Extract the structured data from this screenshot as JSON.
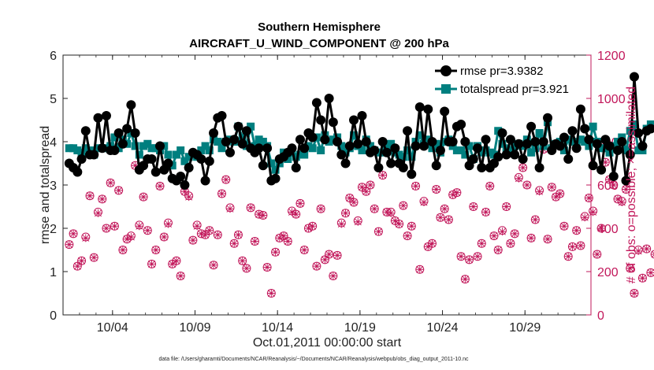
{
  "chart_data": {
    "type": "line",
    "title_line1": "Southern Hemisphere",
    "title_line2": "AIRCRAFT_U_WIND_COMPONENT @ 200 hPa",
    "xlabel": "Oct.01,2011 00:00:00 start",
    "ylabel_left": "rmse and totalspread",
    "ylabel_right": "# of obs: o=possible; ×=assimilated",
    "footnote": "data file: /Users/gharamti/Documents/NCAR/Reanalysis/~/Documents/NCAR/Reanalysis/webpub/obs_diag_output_2011-10.nc",
    "x_range": [
      0,
      32
    ],
    "ylim_left": [
      0,
      6
    ],
    "ylim_right": [
      0,
      1200
    ],
    "x_ticks": [
      {
        "pos": 3,
        "label": "10/04"
      },
      {
        "pos": 8,
        "label": "10/09"
      },
      {
        "pos": 13,
        "label": "10/14"
      },
      {
        "pos": 18,
        "label": "10/19"
      },
      {
        "pos": 23,
        "label": "10/24"
      },
      {
        "pos": 28,
        "label": "10/29"
      }
    ],
    "y_ticks_left": [
      "0",
      "1",
      "2",
      "3",
      "4",
      "5",
      "6"
    ],
    "y_ticks_right": [
      "0",
      "200",
      "400",
      "600",
      "800",
      "1000",
      "1200"
    ],
    "legend": {
      "placement": "top-right",
      "entries": [
        {
          "name": "rmse pr=3.9382",
          "color": "#000000",
          "marker": "circle"
        },
        {
          "name": "totalspread pr=3.921",
          "color": "#007f7f",
          "marker": "square"
        }
      ]
    },
    "colors": {
      "rmse": "#000000",
      "spread": "#007f7f",
      "obs": "#c2185b"
    },
    "step_days": 0.25,
    "rmse": [
      3.5,
      3.4,
      3.3,
      3.6,
      4.25,
      3.7,
      3.7,
      4.55,
      3.85,
      4.6,
      3.8,
      3.8,
      4.2,
      3.95,
      4.3,
      4.85,
      4.2,
      3.35,
      3.45,
      3.6,
      3.6,
      3.3,
      3.9,
      3.35,
      3.5,
      3.15,
      3.1,
      3.2,
      3.0,
      3.4,
      3.75,
      3.7,
      3.6,
      3.1,
      3.55,
      4.2,
      4.55,
      4.6,
      4.0,
      3.75,
      4.05,
      4.35,
      3.95,
      4.25,
      3.85,
      3.75,
      3.85,
      3.45,
      3.85,
      3.1,
      3.15,
      3.6,
      3.65,
      3.75,
      3.85,
      3.4,
      4.05,
      3.85,
      4.2,
      4.1,
      4.9,
      4.5,
      4.05,
      5.0,
      4.45,
      4.0,
      3.7,
      3.5,
      3.9,
      4.5,
      3.95,
      4.6,
      4.0,
      3.75,
      3.8,
      3.4,
      4.0,
      3.75,
      3.5,
      3.85,
      3.5,
      3.4,
      4.25,
      3.25,
      3.9,
      4.8,
      3.9,
      4.75,
      4.0,
      3.45,
      3.8,
      4.7,
      4.0,
      4.0,
      4.35,
      4.4,
      4.0,
      3.45,
      3.6,
      3.85,
      3.4,
      4.05,
      3.4,
      3.5,
      3.65,
      4.2,
      3.7,
      4.05,
      3.7,
      3.95,
      3.6,
      3.95,
      4.35,
      4.0,
      3.4,
      4.0,
      4.55,
      3.8,
      3.95,
      3.9,
      4.1,
      3.6,
      4.25,
      3.85,
      4.75,
      4.3,
      4.05,
      3.45,
      3.95,
      3.35,
      4.05,
      3.9,
      3.2,
      3.8,
      4.0,
      3.1,
      3.7,
      5.5,
      4.2,
      3.9,
      4.25,
      4.3
    ],
    "totalspread": [
      3.85,
      3.85,
      3.8,
      3.75,
      3.85,
      3.8,
      3.7,
      3.85,
      3.85,
      3.85,
      3.9,
      4.1,
      3.85,
      4.05,
      3.95,
      4.2,
      3.9,
      3.7,
      3.9,
      3.95,
      3.85,
      3.85,
      3.8,
      3.9,
      3.7,
      3.45,
      3.7,
      3.8,
      3.55,
      3.65,
      3.7,
      3.65,
      3.8,
      3.9,
      3.8,
      4.05,
      4.0,
      3.85,
      4.0,
      4.05,
      4.0,
      4.35,
      4.1,
      3.9,
      4.35,
      3.9,
      4.05,
      4.0,
      3.9,
      3.5,
      3.35,
      3.5,
      3.75,
      3.6,
      3.75,
      3.65,
      3.7,
      3.7,
      3.9,
      3.85,
      4.1,
      3.8,
      4.15,
      4.0,
      4.05,
      4.1,
      3.9,
      3.75,
      3.85,
      4.15,
      3.9,
      3.8,
      4.05,
      3.9,
      3.8,
      3.75,
      3.75,
      3.9,
      3.95,
      3.75,
      3.7,
      3.65,
      3.8,
      3.65,
      4.0,
      4.15,
      3.95,
      4.05,
      3.85,
      3.95,
      3.75,
      4.0,
      4.05,
      3.9,
      3.8,
      3.8,
      3.7,
      3.9,
      3.6,
      3.9,
      3.75,
      3.8,
      3.75,
      3.7,
      4.25,
      3.95,
      3.85,
      3.8,
      3.9,
      3.95,
      3.9,
      4.05,
      3.75,
      3.85,
      4.2,
      3.9,
      4.45,
      3.85,
      3.95,
      4.0,
      3.8,
      4.05,
      4.0,
      3.95,
      4.05,
      4.0,
      3.9,
      4.35,
      4.0,
      3.85,
      3.85,
      3.75,
      3.9,
      4.0,
      4.1,
      3.8,
      4.25,
      4.4,
      3.8,
      3.8,
      4.3,
      4.4
    ],
    "obs_possible": [
      325,
      375,
      225,
      250,
      360,
      550,
      265,
      475,
      535,
      400,
      610,
      410,
      575,
      300,
      350,
      365,
      690,
      415,
      545,
      390,
      235,
      300,
      595,
      360,
      425,
      235,
      250,
      180,
      570,
      550,
      345,
      415,
      375,
      370,
      390,
      230,
      370,
      560,
      625,
      495,
      330,
      370,
      250,
      215,
      495,
      340,
      465,
      460,
      220,
      100,
      290,
      355,
      365,
      340,
      480,
      465,
      515,
      300,
      400,
      410,
      225,
      490,
      255,
      280,
      180,
      275,
      425,
      470,
      540,
      520,
      435,
      590,
      570,
      600,
      490,
      385,
      645,
      475,
      475,
      435,
      420,
      505,
      365,
      410,
      595,
      210,
      525,
      315,
      330,
      580,
      450,
      490,
      440,
      555,
      565,
      270,
      165,
      255,
      500,
      270,
      330,
      475,
      595,
      365,
      300,
      390,
      500,
      330,
      375,
      635,
      680,
      600,
      355,
      440,
      575,
      765,
      350,
      590,
      545,
      560,
      410,
      270,
      315,
      390,
      320,
      455,
      540,
      480,
      280,
      400,
      705,
      625,
      600,
      535,
      525,
      580,
      215,
      100,
      300,
      170,
      305,
      195,
      280,
      375,
      400,
      225
    ],
    "obs_assimilated": [
      325,
      375,
      225,
      250,
      355,
      550,
      265,
      470,
      535,
      400,
      610,
      410,
      575,
      300,
      350,
      360,
      690,
      410,
      545,
      390,
      235,
      300,
      595,
      360,
      420,
      235,
      250,
      180,
      570,
      545,
      345,
      410,
      375,
      370,
      390,
      230,
      370,
      560,
      625,
      490,
      330,
      370,
      250,
      215,
      495,
      340,
      465,
      460,
      220,
      100,
      290,
      355,
      365,
      340,
      475,
      465,
      515,
      300,
      400,
      410,
      225,
      490,
      255,
      280,
      180,
      275,
      420,
      470,
      540,
      520,
      430,
      590,
      570,
      600,
      490,
      385,
      645,
      475,
      470,
      435,
      420,
      505,
      365,
      410,
      595,
      210,
      520,
      315,
      330,
      580,
      450,
      490,
      440,
      555,
      565,
      270,
      165,
      255,
      500,
      270,
      330,
      475,
      595,
      365,
      300,
      385,
      500,
      330,
      375,
      630,
      680,
      600,
      355,
      440,
      570,
      765,
      350,
      590,
      545,
      560,
      410,
      270,
      315,
      390,
      320,
      450,
      540,
      475,
      280,
      400,
      705,
      625,
      600,
      535,
      520,
      580,
      215,
      100,
      295,
      170,
      305,
      195,
      280,
      370,
      400,
      225
    ]
  }
}
